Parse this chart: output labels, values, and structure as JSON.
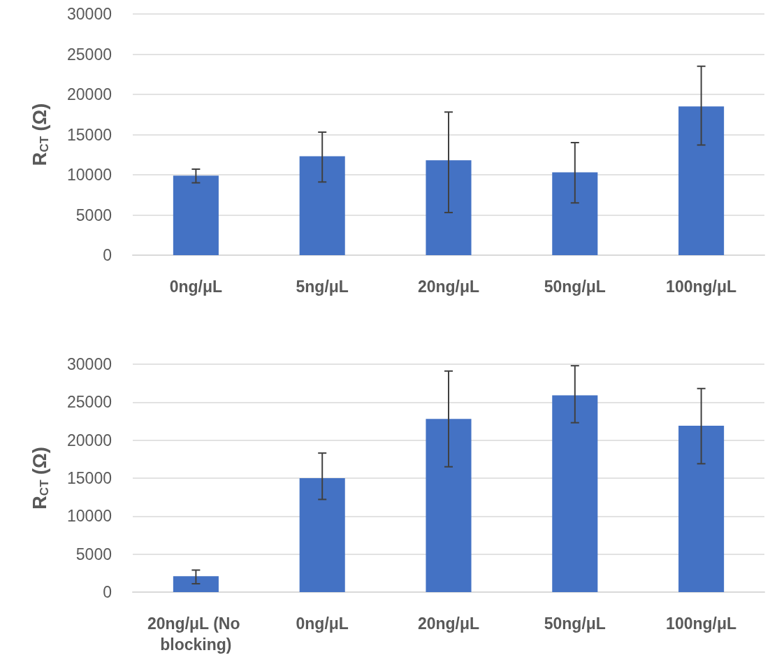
{
  "chart_data": [
    {
      "type": "bar",
      "ylabel": "R$_{CT}$ (Ω)",
      "categories": [
        "0ng/μL",
        "5ng/μL",
        "20ng/μL",
        "50ng/μL",
        "100ng/μL"
      ],
      "values": [
        9900,
        12300,
        11800,
        10300,
        18500
      ],
      "errors": [
        [
          9000,
          10700
        ],
        [
          9100,
          15300
        ],
        [
          5300,
          17800
        ],
        [
          6500,
          14000
        ],
        [
          13700,
          23500
        ]
      ],
      "color": "#4472c4",
      "ylim": [
        0,
        30000
      ],
      "yticks": [
        0,
        5000,
        10000,
        15000,
        20000,
        25000,
        30000
      ],
      "grid": "y"
    },
    {
      "type": "bar",
      "ylabel": "R$_{CT}$ (Ω)",
      "categories": [
        "20ng/μL (No blocking)",
        "0ng/μL",
        "20ng/μL",
        "50ng/μL",
        "100ng/μL"
      ],
      "values": [
        2100,
        15000,
        22800,
        25900,
        21900
      ],
      "errors": [
        [
          1100,
          2900
        ],
        [
          12200,
          18300
        ],
        [
          16500,
          29100
        ],
        [
          22300,
          29800
        ],
        [
          16900,
          26800
        ]
      ],
      "color": "#4472c4",
      "ylim": [
        0,
        30000
      ],
      "yticks": [
        0,
        5000,
        10000,
        15000,
        20000,
        25000,
        30000
      ],
      "grid": "y"
    }
  ]
}
